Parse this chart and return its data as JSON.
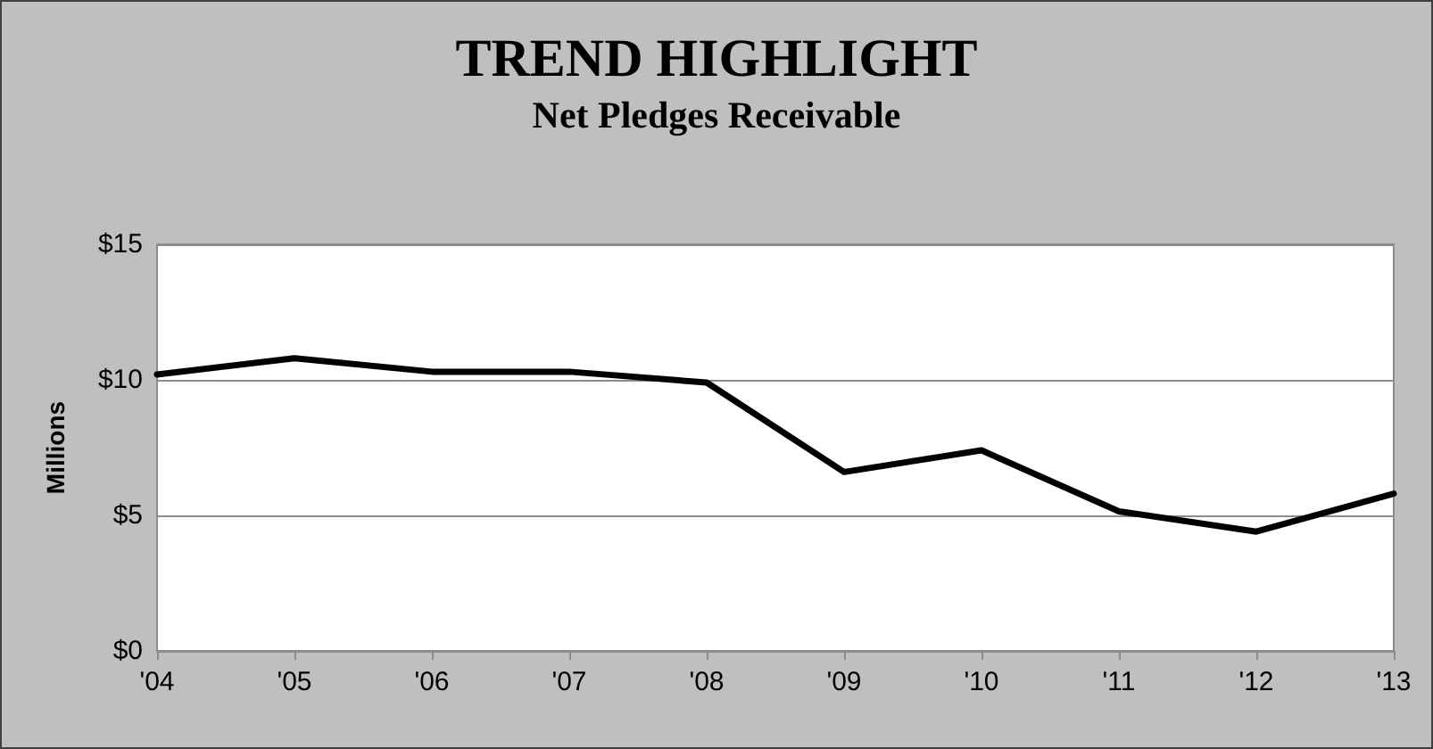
{
  "chart_data": {
    "type": "line",
    "title": "TREND HIGHLIGHT",
    "subtitle": "Net Pledges Receivable",
    "ylabel": "Millions",
    "categories": [
      "'04",
      "'05",
      "'06",
      "'07",
      "'08",
      "'09",
      "'10",
      "'11",
      "'12",
      "'13"
    ],
    "series": [
      {
        "color": "#000000",
        "values": [
          10.2,
          10.8,
          10.3,
          10.3,
          9.9,
          6.6,
          7.4,
          5.15,
          4.4,
          5.8
        ]
      }
    ],
    "ylim": [
      0,
      15
    ],
    "yticks": [
      {
        "value": 0,
        "label": "$0"
      },
      {
        "value": 5,
        "label": "$5"
      },
      {
        "value": 10,
        "label": "$10"
      },
      {
        "value": 15,
        "label": "$15"
      }
    ],
    "grid": "y",
    "marker": "none",
    "line_style": "solid"
  }
}
